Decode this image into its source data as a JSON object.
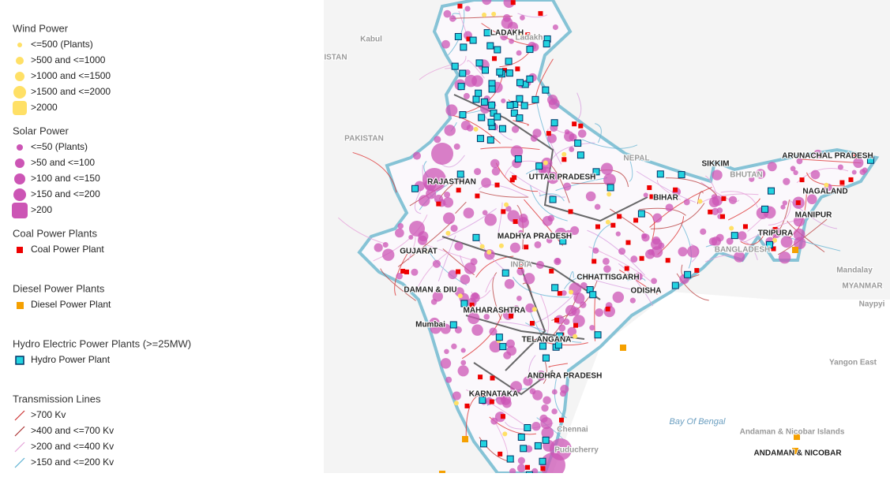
{
  "legend": {
    "sections": [
      {
        "title": "Wind Power",
        "items": [
          "<=500 (Plants)",
          ">500 and <=1000",
          ">1000 and <=1500",
          ">1500 and <=2000",
          ">2000"
        ]
      },
      {
        "title": "Solar Power",
        "items": [
          "<=50 (Plants)",
          ">50 and <=100",
          ">100 and <=150",
          ">150 and <=200",
          ">200"
        ]
      },
      {
        "title": "Coal Power Plants",
        "items": [
          "Coal Power Plant"
        ]
      },
      {
        "title": "Diesel Power Plants",
        "items": [
          "Diesel Power Plant"
        ]
      },
      {
        "title": "Hydro Electric Power Plants (>=25MW)",
        "items": [
          "Hydro Power Plant"
        ]
      },
      {
        "title": "Transmission Lines",
        "items": [
          ">700 Kv",
          ">400 and <=700 Kv",
          ">200 and <=400 Kv",
          ">150 and <=200 Kv"
        ]
      }
    ]
  },
  "map": {
    "labels": [
      "Kabul",
      "ISTAN",
      "PAKISTAN",
      "LADAKH",
      "Ladakh",
      "NEPAL",
      "BHUTAN",
      "ARUNACHAL PRADESH",
      "NAGALAND",
      "MANIPUR",
      "TRIPURA",
      "BANGLADESH",
      "Mandalay",
      "MYANMAR",
      "Naypyi",
      "Yangon East",
      "Bay Of Bengal",
      "Andaman & Nicobar Islands",
      "ANDAMAN & NICOBAR",
      "RAJASTHAN",
      "GUJARAT",
      "MADHYA PRADESH",
      "UTTAR PRADESH",
      "BIHAR",
      "CHHATTISGARH",
      "ODISHA",
      "MAHARASHTRA",
      "TELANGANA",
      "ANDHRA PRADESH",
      "KARNATAKA",
      "DAMAN & DIU",
      "Mumbai",
      "Chennai",
      "Puducherry",
      "SIKKIM",
      "INDIA"
    ]
  }
}
